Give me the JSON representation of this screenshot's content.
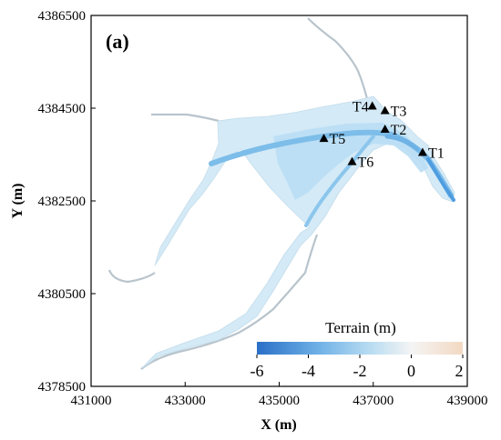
{
  "panel_label": "(a)",
  "axes": {
    "xlabel": "X (m)",
    "ylabel": "Y (m)",
    "xlim": [
      431000,
      439000
    ],
    "ylim": [
      4378500,
      4386500
    ],
    "xticks": [
      "431000",
      "433000",
      "435000",
      "437000",
      "439000"
    ],
    "yticks": [
      "4378500",
      "4380500",
      "4382500",
      "4384500",
      "4386500"
    ]
  },
  "stations": [
    {
      "name": "T1",
      "x": 438050,
      "y": 4383550
    },
    {
      "name": "T2",
      "x": 437250,
      "y": 4384050
    },
    {
      "name": "T3",
      "x": 437250,
      "y": 4384450
    },
    {
      "name": "T4",
      "x": 436980,
      "y": 4384550
    },
    {
      "name": "T5",
      "x": 435950,
      "y": 4383850
    },
    {
      "name": "T6",
      "x": 436550,
      "y": 4383350
    }
  ],
  "colorbar": {
    "title": "Terrain (m)",
    "ticks": [
      "-6",
      "-4",
      "-2",
      "0",
      "2"
    ],
    "range": [
      -6,
      2
    ],
    "colors": [
      "#2a6fc7",
      "#6fb1e6",
      "#b8dcf2",
      "#f4f4f4",
      "#f3d9c2"
    ]
  },
  "colors": {
    "water_light": "#d4eaf7",
    "water_mid": "#a9d4ef",
    "channel_deep": "#6fb3e6",
    "shoreline": "#b8c4cc"
  }
}
